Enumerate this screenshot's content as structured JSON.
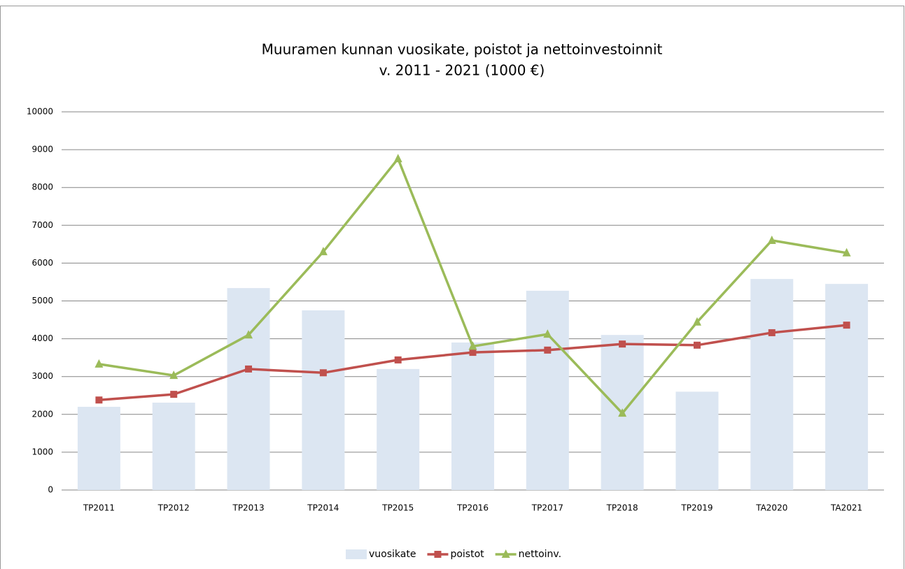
{
  "chart_data": {
    "type": "bar-line",
    "title": [
      "Muuramen kunnan vuosikate, poistot ja nettoinvestoinnit",
      "v. 2011 - 2021 (1000 €)"
    ],
    "categories": [
      "TP2011",
      "TP2012",
      "TP2013",
      "TP2014",
      "TP2015",
      "TP2016",
      "TP2017",
      "TP2018",
      "TP2019",
      "TA2020",
      "TA2021"
    ],
    "series": [
      {
        "name": "vuosikate",
        "type": "bar",
        "color": "#dce6f2",
        "values": [
          2200,
          2310,
          5340,
          4750,
          3200,
          3900,
          5270,
          4100,
          2600,
          5580,
          5450
        ]
      },
      {
        "name": "poistot",
        "type": "line",
        "marker": "square",
        "color": "#c0504d",
        "values": [
          2380,
          2530,
          3200,
          3100,
          3440,
          3640,
          3700,
          3860,
          3830,
          4160,
          4360
        ]
      },
      {
        "name": "nettoinv.",
        "type": "line",
        "marker": "triangle",
        "color": "#9bbb59",
        "values": [
          3330,
          3030,
          4100,
          6300,
          8760,
          3800,
          4120,
          2030,
          4440,
          6600,
          6270
        ]
      }
    ],
    "ylim": [
      0,
      10000
    ],
    "yticks": [
      0,
      1000,
      2000,
      3000,
      4000,
      5000,
      6000,
      7000,
      8000,
      9000,
      10000
    ],
    "grid": true,
    "legend": "bottom"
  }
}
